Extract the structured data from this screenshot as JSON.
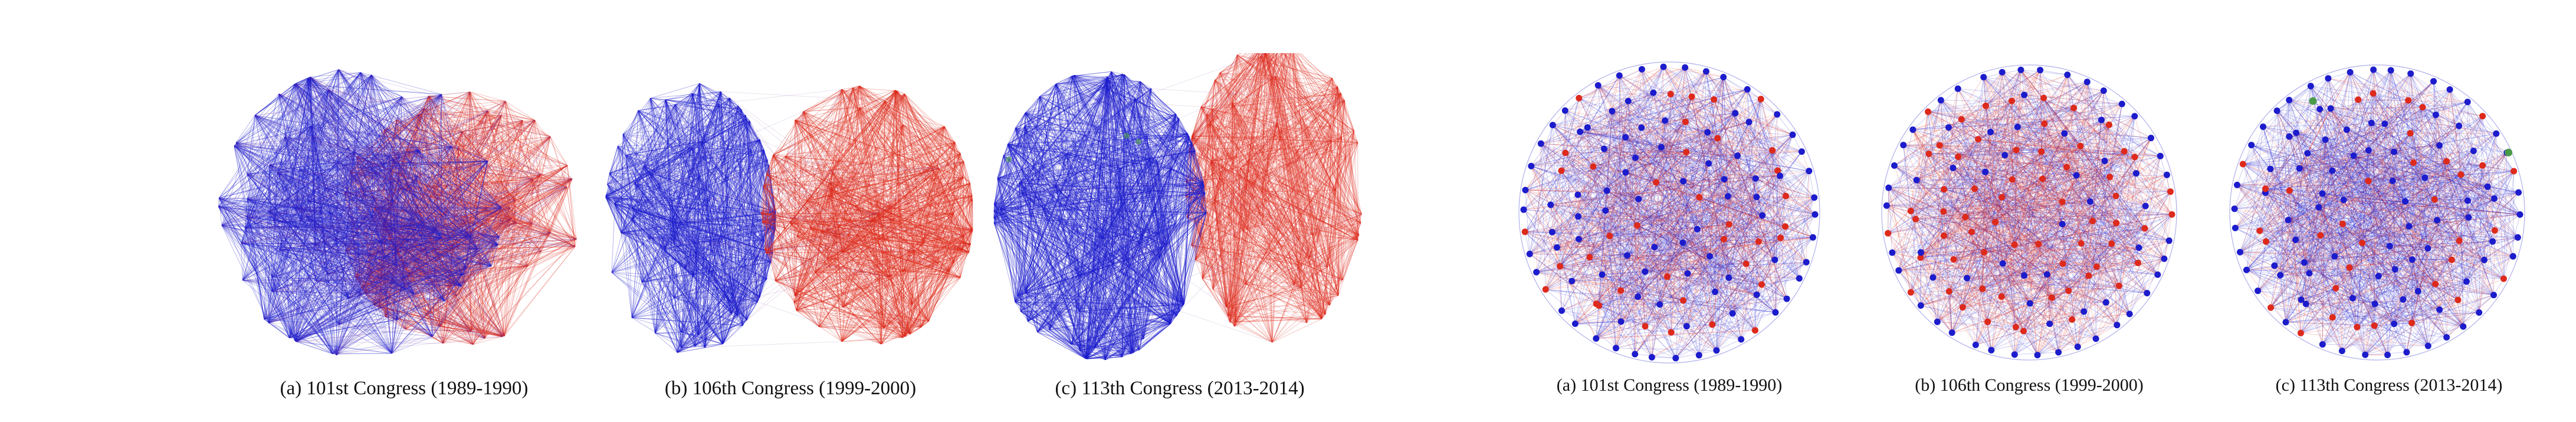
{
  "colors": {
    "democrat": "#1c1ccc",
    "republican": "#dd2a1c",
    "independent": "#4a9a4a"
  },
  "left_panels": [
    {
      "caption": "(a) 101st Congress (1989-1990)",
      "style": "overlap"
    },
    {
      "caption": "(b) 106th Congress (1999-2000)",
      "style": "separated"
    },
    {
      "caption": "(c) 113th Congress (2013-2014)",
      "style": "polarized"
    }
  ],
  "right_panels": [
    {
      "caption": "(a) 101st Congress (1989-1990)",
      "independents": 0,
      "red_share": 0.3
    },
    {
      "caption": "(b) 106th Congress (1999-2000)",
      "independents": 0,
      "red_share": 0.45
    },
    {
      "caption": "(c) 113th Congress (2013-2014)",
      "independents": 2,
      "red_share": 0.25
    }
  ]
}
